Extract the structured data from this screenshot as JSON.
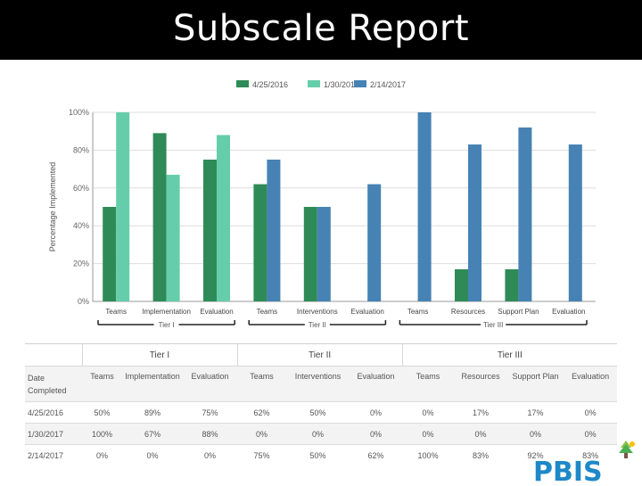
{
  "header": {
    "title": "Subscale Report"
  },
  "colors": {
    "series1": "#2e8b57",
    "series2": "#66cdaa",
    "series3": "#4682b4"
  },
  "chart_data": {
    "type": "bar",
    "ylabel": "Percentage Implemented",
    "ylim": [
      0,
      100
    ],
    "yticks": [
      "0%",
      "20%",
      "40%",
      "60%",
      "80%",
      "100%"
    ],
    "grid": true,
    "legend": "top-center",
    "groups": [
      {
        "name": "Tier I",
        "categories": [
          "Teams",
          "Implementation",
          "Evaluation"
        ]
      },
      {
        "name": "Tier II",
        "categories": [
          "Teams",
          "Interventions",
          "Evaluation"
        ]
      },
      {
        "name": "Tier III",
        "categories": [
          "Teams",
          "Resources",
          "Support Plan",
          "Evaluation"
        ]
      }
    ],
    "categories": [
      "Teams",
      "Implementation",
      "Evaluation",
      "Teams",
      "Interventions",
      "Evaluation",
      "Teams",
      "Resources",
      "Support Plan",
      "Evaluation"
    ],
    "series": [
      {
        "name": "4/25/2016",
        "values": [
          50,
          89,
          75,
          62,
          50,
          0,
          0,
          17,
          17,
          0
        ]
      },
      {
        "name": "1/30/2017",
        "values": [
          100,
          67,
          88,
          0,
          0,
          0,
          0,
          0,
          0,
          0
        ]
      },
      {
        "name": "2/14/2017",
        "values": [
          0,
          0,
          0,
          75,
          50,
          62,
          100,
          83,
          92,
          83
        ]
      }
    ]
  },
  "table": {
    "tiers": [
      "Tier I",
      "Tier II",
      "Tier III"
    ],
    "date_header": "Date Completed",
    "columns": [
      "Teams",
      "Implementation",
      "Evaluation",
      "Teams",
      "Interventions",
      "Evaluation",
      "Teams",
      "Resources",
      "Support Plan",
      "Evaluation"
    ],
    "rows": [
      {
        "date": "4/25/2016",
        "values": [
          "50%",
          "89%",
          "75%",
          "62%",
          "50%",
          "0%",
          "0%",
          "17%",
          "17%",
          "0%"
        ]
      },
      {
        "date": "1/30/2017",
        "values": [
          "100%",
          "67%",
          "88%",
          "0%",
          "0%",
          "0%",
          "0%",
          "0%",
          "0%",
          "0%"
        ]
      },
      {
        "date": "2/14/2017",
        "values": [
          "0%",
          "0%",
          "0%",
          "75%",
          "50%",
          "62%",
          "100%",
          "83%",
          "92%",
          "83%"
        ]
      }
    ]
  },
  "logo": {
    "text": "PBIS"
  }
}
